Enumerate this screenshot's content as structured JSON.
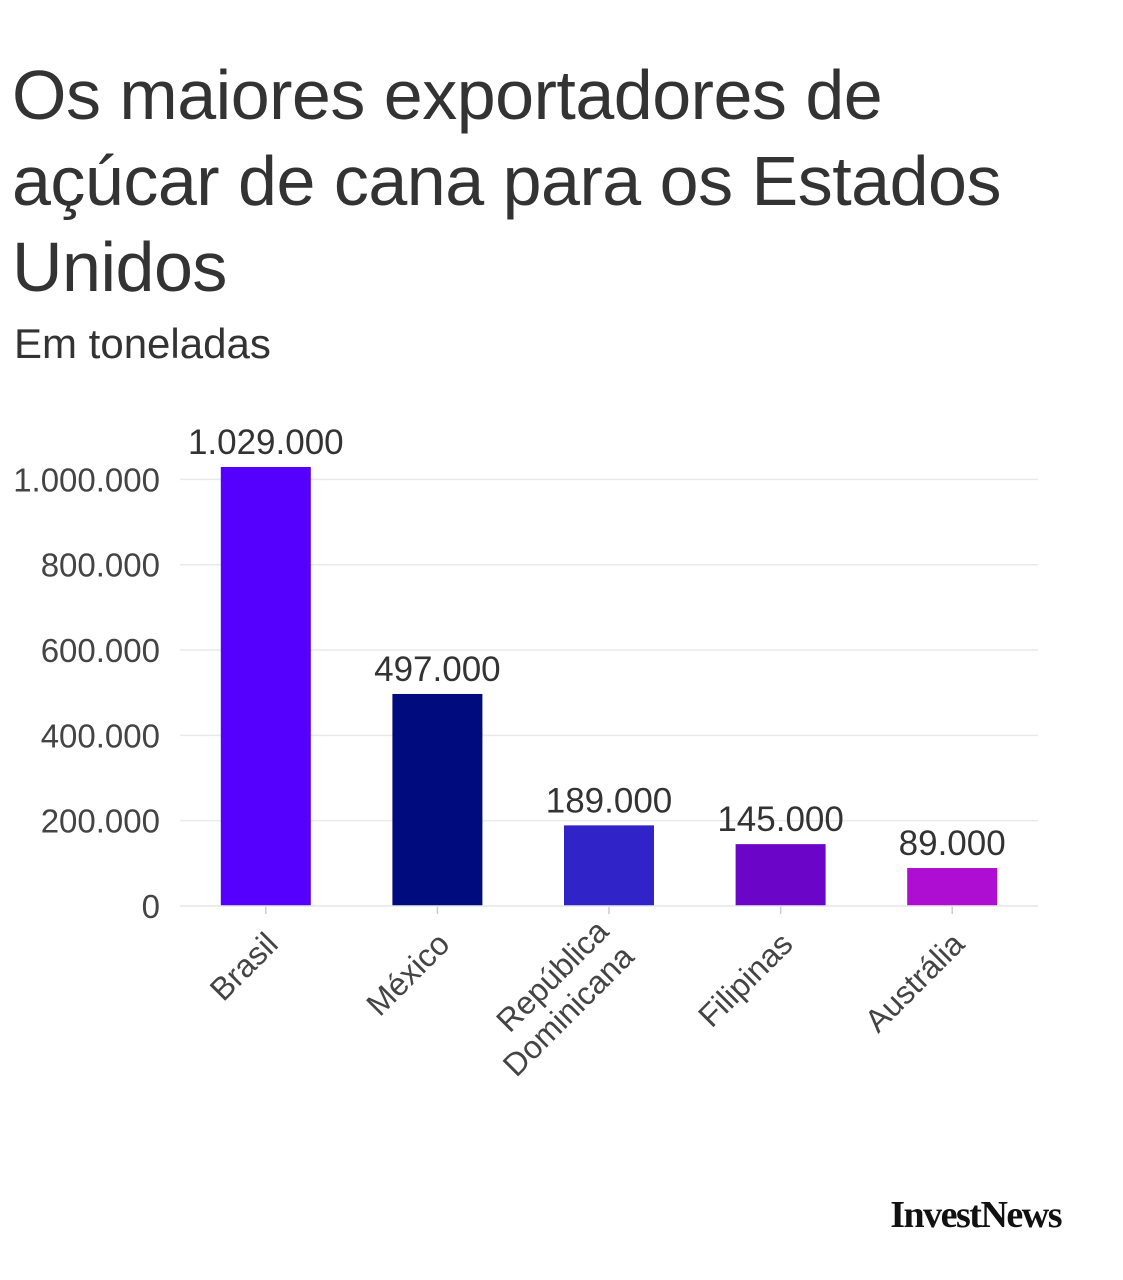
{
  "title": "Os maiores exportadores de açúcar de cana para os Estados Unidos",
  "subtitle": "Em toneladas",
  "brand": "InvestNews",
  "chart_data": {
    "type": "bar",
    "title": "Os maiores exportadores de açúcar de cana para os Estados Unidos",
    "subtitle": "Em toneladas",
    "categories": [
      [
        "Brasil"
      ],
      [
        "México"
      ],
      [
        "República",
        "Dominicana"
      ],
      [
        "Filipinas"
      ],
      [
        "Austrália"
      ]
    ],
    "values": [
      1029000,
      497000,
      189000,
      145000,
      89000
    ],
    "value_labels": [
      "1.029.000",
      "497.000",
      "189.000",
      "145.000",
      "89.000"
    ],
    "colors": [
      "#5500ff",
      "#000c7d",
      "#3024c8",
      "#6b06c9",
      "#ad0ed1"
    ],
    "y_ticks": [
      0,
      200000,
      400000,
      600000,
      800000,
      1000000
    ],
    "y_tick_labels": [
      "0",
      "200.000",
      "400.000",
      "600.000",
      "800.000",
      "1.000.000"
    ],
    "ylim": [
      0,
      1029000
    ],
    "xlabel": "",
    "ylabel": "",
    "grid": true,
    "legend": "none"
  }
}
